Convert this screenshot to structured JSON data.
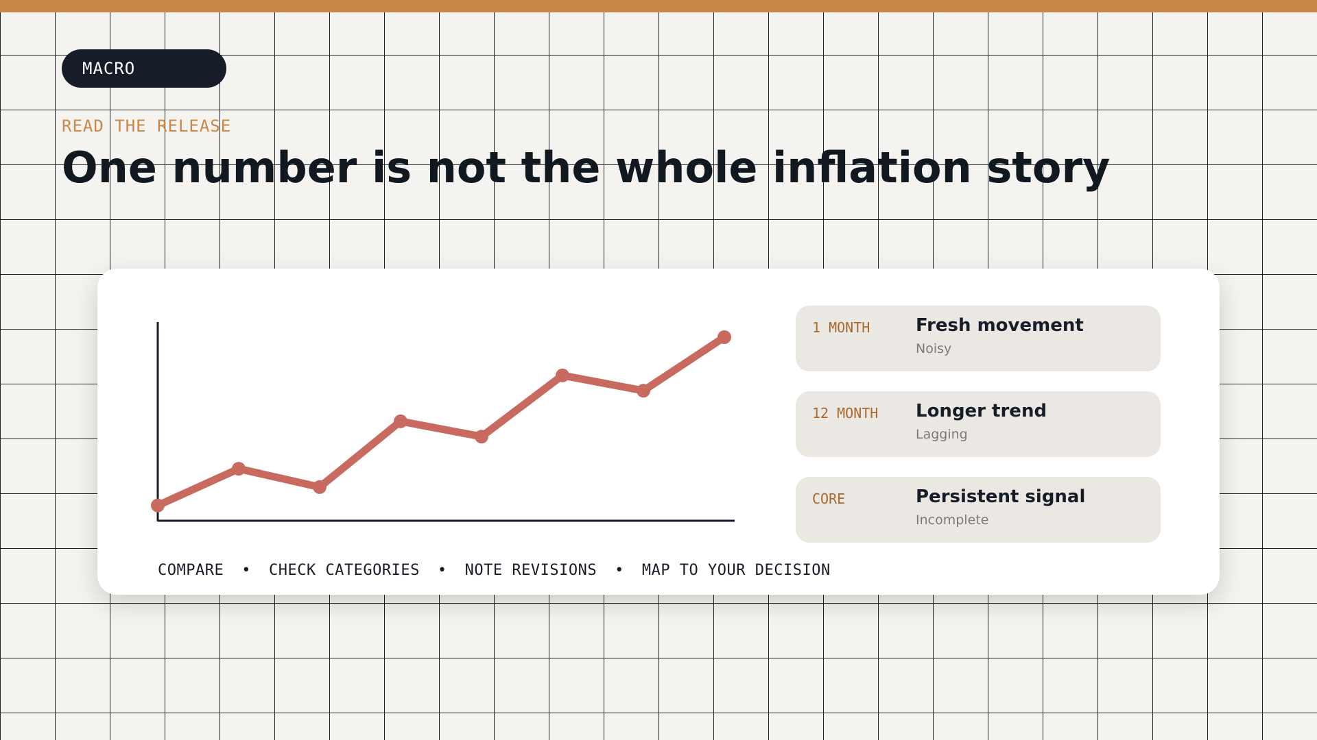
{
  "badge": {
    "label": "MACRO"
  },
  "eyebrow": "READ THE RELEASE",
  "title": "One number is not the whole inflation story",
  "colors": {
    "accent": "#c9874a",
    "line": "#c96a61",
    "dark": "#161d28"
  },
  "chart_data": {
    "type": "line",
    "title": "",
    "xlabel": "",
    "ylabel": "",
    "x": [
      1,
      2,
      3,
      4,
      5,
      6,
      7,
      8
    ],
    "series": [
      {
        "values": [
          1.0,
          3.4,
          2.2,
          6.5,
          5.5,
          9.5,
          8.5,
          12.0
        ]
      }
    ],
    "xlim": [
      1,
      8
    ],
    "ylim": [
      0,
      12.9
    ],
    "grid": false,
    "legend": "none"
  },
  "metrics": [
    {
      "key": "1 MONTH",
      "headline": "Fresh movement",
      "note": "Noisy"
    },
    {
      "key": "12 MONTH",
      "headline": "Longer trend",
      "note": "Lagging"
    },
    {
      "key": "CORE",
      "headline": "Persistent signal",
      "note": "Incomplete"
    }
  ],
  "steps": [
    "COMPARE",
    "CHECK CATEGORIES",
    "NOTE REVISIONS",
    "MAP TO YOUR DECISION"
  ],
  "step_separator": "•"
}
